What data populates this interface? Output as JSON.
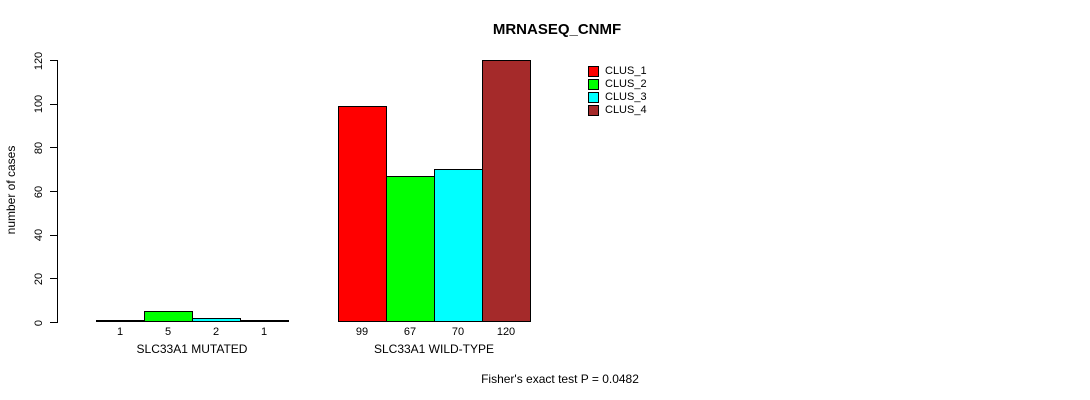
{
  "chart_data": {
    "type": "bar",
    "title": "MRNASEQ_CNMF",
    "ylabel": "number of cases",
    "xlabel": "",
    "ylim": [
      0,
      120
    ],
    "yticks": [
      0,
      20,
      40,
      60,
      80,
      100,
      120
    ],
    "grid": false,
    "legend_position": "top-right",
    "categories": [
      "SLC33A1 MUTATED",
      "SLC33A1 WILD-TYPE"
    ],
    "series": [
      {
        "name": "CLUS_1",
        "color": "#FF0000",
        "values": [
          1,
          99
        ]
      },
      {
        "name": "CLUS_2",
        "color": "#00FF00",
        "values": [
          5,
          67
        ]
      },
      {
        "name": "CLUS_3",
        "color": "#00FFFF",
        "values": [
          2,
          70
        ]
      },
      {
        "name": "CLUS_4",
        "color": "#A52A2A",
        "values": [
          1,
          120
        ]
      }
    ],
    "bar_value_labels": [
      [
        "1",
        "5",
        "2",
        "1"
      ],
      [
        "99",
        "67",
        "70",
        "120"
      ]
    ],
    "footnote": "Fisher's exact test P = 0.0482",
    "axis_color": "#000000",
    "bar_border_color": "#000000"
  }
}
